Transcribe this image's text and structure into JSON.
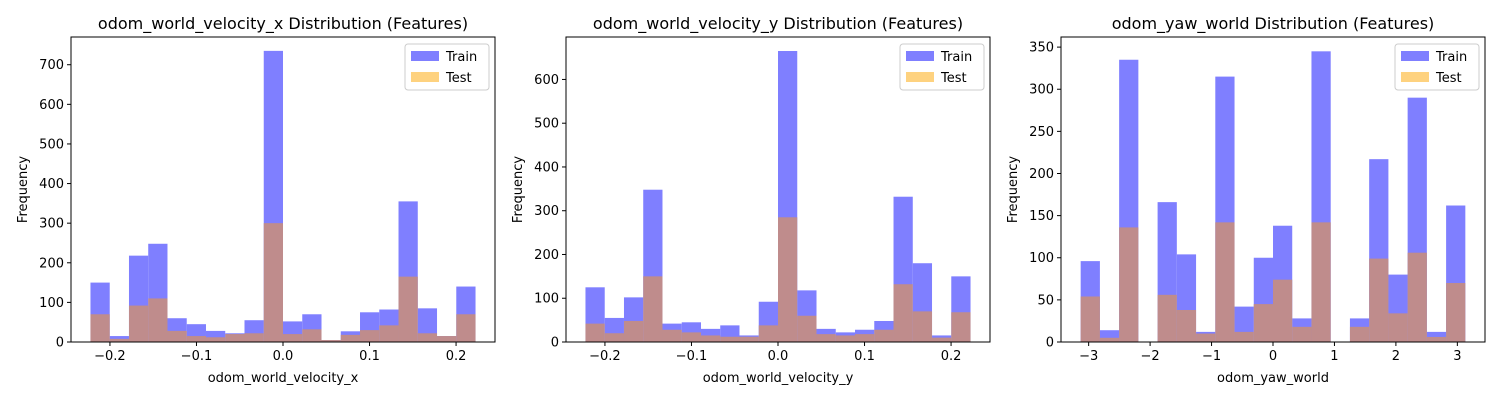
{
  "colors": {
    "train": "#7f7fff",
    "test": "#fed27f",
    "overlap": "#bf8c8c"
  },
  "chart_data": [
    {
      "type": "bar",
      "title": "odom_world_velocity_x Distribution (Features)",
      "xlabel": "odom_world_velocity_x",
      "ylabel": "Frequency",
      "xlim": [
        -0.245,
        0.245
      ],
      "ylim": [
        0,
        770
      ],
      "xticks": [
        -0.2,
        -0.1,
        0.0,
        0.1,
        0.2
      ],
      "xtick_labels": [
        "−0.2",
        "−0.1",
        "0.0",
        "0.1",
        "0.2"
      ],
      "yticks": [
        0,
        100,
        200,
        300,
        400,
        500,
        600,
        700
      ],
      "bin_start": -0.2225,
      "bin_width": 0.02225,
      "legend": {
        "position": "top-right",
        "entries": [
          "Train",
          "Test"
        ]
      },
      "series": [
        {
          "name": "Train",
          "values": [
            150,
            15,
            218,
            248,
            60,
            45,
            28,
            22,
            55,
            735,
            52,
            70,
            5,
            27,
            75,
            82,
            355,
            85,
            15,
            140
          ]
        },
        {
          "name": "Test",
          "values": [
            70,
            8,
            92,
            110,
            28,
            15,
            12,
            20,
            22,
            300,
            20,
            32,
            5,
            18,
            30,
            42,
            165,
            22,
            15,
            70
          ]
        }
      ]
    },
    {
      "type": "bar",
      "title": "odom_world_velocity_y Distribution (Features)",
      "xlabel": "odom_world_velocity_y",
      "ylabel": "Frequency",
      "xlim": [
        -0.245,
        0.245
      ],
      "ylim": [
        0,
        697
      ],
      "xticks": [
        -0.2,
        -0.1,
        0.0,
        0.1,
        0.2
      ],
      "xtick_labels": [
        "−0.2",
        "−0.1",
        "0.0",
        "0.1",
        "0.2"
      ],
      "yticks": [
        0,
        100,
        200,
        300,
        400,
        500,
        600
      ],
      "bin_start": -0.2225,
      "bin_width": 0.02225,
      "legend": {
        "position": "top-right",
        "entries": [
          "Train",
          "Test"
        ]
      },
      "series": [
        {
          "name": "Train",
          "values": [
            125,
            55,
            102,
            348,
            42,
            45,
            30,
            38,
            15,
            92,
            665,
            118,
            30,
            22,
            28,
            48,
            332,
            180,
            15,
            150
          ]
        },
        {
          "name": "Test",
          "values": [
            42,
            20,
            48,
            150,
            28,
            22,
            15,
            12,
            12,
            38,
            285,
            60,
            18,
            15,
            18,
            28,
            132,
            70,
            10,
            68
          ]
        }
      ]
    },
    {
      "type": "bar",
      "title": "odom_yaw_world Distribution (Features)",
      "xlabel": "odom_yaw_world",
      "ylabel": "Frequency",
      "xlim": [
        -3.45,
        3.45
      ],
      "ylim": [
        0,
        362
      ],
      "xticks": [
        -3,
        -2,
        -1,
        0,
        1,
        2,
        3
      ],
      "xtick_labels": [
        "−3",
        "−2",
        "−1",
        "0",
        "1",
        "2",
        "3"
      ],
      "yticks": [
        0,
        50,
        100,
        150,
        200,
        250,
        300,
        350
      ],
      "bin_start": -3.13,
      "bin_width": 0.313,
      "legend": {
        "position": "top-right",
        "entries": [
          "Train",
          "Test"
        ]
      },
      "series": [
        {
          "name": "Train",
          "values": [
            96,
            14,
            335,
            0,
            166,
            104,
            12,
            315,
            42,
            100,
            138,
            28,
            345,
            0,
            28,
            217,
            80,
            290,
            12,
            162
          ]
        },
        {
          "name": "Test",
          "values": [
            54,
            5,
            136,
            0,
            56,
            38,
            10,
            142,
            12,
            45,
            74,
            18,
            142,
            0,
            18,
            99,
            34,
            106,
            6,
            70
          ]
        }
      ]
    }
  ]
}
